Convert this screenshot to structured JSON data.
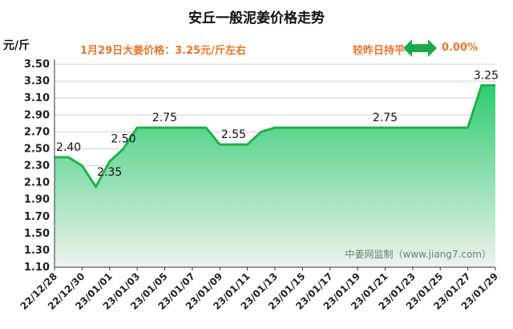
{
  "header": {
    "title": "安丘一般泥姜价格走势",
    "unit": "元/斤",
    "price_note": "1月29日大姜价格：3.25元/斤左右",
    "change_label": "较昨日持平",
    "change_value": "0.00%"
  },
  "colors": {
    "line": "#22b14c",
    "fill_top": "#2ecc71",
    "fill_bottom": "#eef2ee",
    "accent": "#e8762a",
    "arrow": "#1fa84a"
  },
  "icons": {
    "change": "double-arrow-icon"
  },
  "chart_data": {
    "type": "area",
    "title": "安丘一般泥姜价格走势",
    "ylabel": "元/斤",
    "xlabel": "",
    "ylim": [
      1.1,
      3.5
    ],
    "ystep": 0.2,
    "yticks": [
      "3.50",
      "3.30",
      "3.10",
      "2.90",
      "2.70",
      "2.50",
      "2.30",
      "2.10",
      "1.90",
      "1.70",
      "1.50",
      "1.30",
      "1.10"
    ],
    "xticks": [
      "22/12/28",
      "22/12/30",
      "23/01/01",
      "23/01/03",
      "23/01/05",
      "23/01/07",
      "23/01/09",
      "23/01/11",
      "23/01/13",
      "23/01/15",
      "23/01/17",
      "23/01/19",
      "23/01/21",
      "23/01/23",
      "23/01/25",
      "23/01/27",
      "23/01/29"
    ],
    "x": [
      "22/12/28",
      "22/12/29",
      "22/12/30",
      "22/12/31",
      "23/01/01",
      "23/01/02",
      "23/01/03",
      "23/01/04",
      "23/01/05",
      "23/01/06",
      "23/01/07",
      "23/01/08",
      "23/01/09",
      "23/01/10",
      "23/01/11",
      "23/01/12",
      "23/01/13",
      "23/01/14",
      "23/01/15",
      "23/01/16",
      "23/01/17",
      "23/01/18",
      "23/01/19",
      "23/01/20",
      "23/01/21",
      "23/01/22",
      "23/01/23",
      "23/01/24",
      "23/01/25",
      "23/01/26",
      "23/01/27",
      "23/01/28",
      "23/01/29"
    ],
    "values": [
      2.4,
      2.4,
      2.3,
      2.05,
      2.35,
      2.5,
      2.75,
      2.75,
      2.75,
      2.75,
      2.75,
      2.75,
      2.55,
      2.55,
      2.55,
      2.7,
      2.75,
      2.75,
      2.75,
      2.75,
      2.75,
      2.75,
      2.75,
      2.75,
      2.75,
      2.75,
      2.75,
      2.75,
      2.75,
      2.75,
      2.75,
      3.25,
      3.25
    ],
    "data_labels": [
      {
        "text": "2.40",
        "index": 0
      },
      {
        "text": "2.35",
        "index": 4
      },
      {
        "text": "2.50",
        "index": 5
      },
      {
        "text": "2.75",
        "index": 8
      },
      {
        "text": "2.55",
        "index": 13
      },
      {
        "text": "2.75",
        "index": 24
      },
      {
        "text": "3.25",
        "index": 31
      }
    ],
    "watermark": "中姜网监制（www.jiang7.com）",
    "grid": true
  }
}
